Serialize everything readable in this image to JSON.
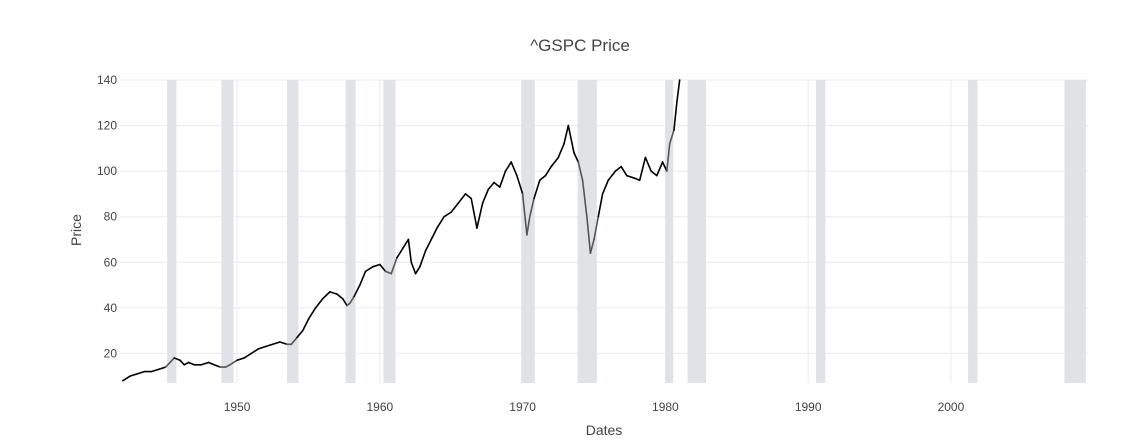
{
  "chart_data": {
    "type": "line",
    "title": "^GSPC Price",
    "xlabel": "Dates",
    "ylabel": "Price",
    "xlim": [
      1941.8,
      2009.6
    ],
    "ylim": [
      7,
      140
    ],
    "x_ticks": [
      1950,
      1960,
      1970,
      1980,
      1990,
      2000
    ],
    "y_ticks": [
      20,
      40,
      60,
      80,
      100,
      120,
      140
    ],
    "grid": true,
    "line_color": "#000000",
    "recession_color": "#dfe3e8",
    "recession_line_color": "#555555",
    "recession_periods": [
      [
        1945.1,
        1945.75
      ],
      [
        1948.9,
        1949.75
      ],
      [
        1953.5,
        1954.3
      ],
      [
        1957.6,
        1958.3
      ],
      [
        1960.25,
        1961.1
      ],
      [
        1969.9,
        1970.85
      ],
      [
        1973.85,
        1975.2
      ],
      [
        1980.0,
        1980.55
      ],
      [
        1981.55,
        1982.85
      ],
      [
        1990.55,
        1991.2
      ],
      [
        2001.2,
        2001.85
      ],
      [
        2007.95,
        2009.45
      ]
    ],
    "series": [
      {
        "x": [
          1942.0,
          1942.5,
          1943.0,
          1943.5,
          1944.0,
          1944.5,
          1945.0,
          1945.3,
          1945.6,
          1946.0,
          1946.3,
          1946.6,
          1947.0,
          1947.5,
          1948.0,
          1948.4,
          1948.8,
          1949.2,
          1949.5,
          1950.0,
          1950.5,
          1951.0,
          1951.5,
          1952.0,
          1952.5,
          1953.0,
          1953.5,
          1953.8,
          1954.2,
          1954.6,
          1955.0,
          1955.5,
          1956.0,
          1956.5,
          1957.0,
          1957.4,
          1957.7,
          1957.9,
          1958.2,
          1958.6,
          1959.0,
          1959.5,
          1960.0,
          1960.4,
          1960.8,
          1961.2,
          1961.6,
          1962.0,
          1962.2,
          1962.5,
          1962.8,
          1963.2,
          1963.6,
          1964.0,
          1964.5,
          1965.0,
          1965.5,
          1966.0,
          1966.4,
          1966.8,
          1967.2,
          1967.6,
          1968.0,
          1968.4,
          1968.8,
          1969.2,
          1969.6,
          1970.0,
          1970.3,
          1970.5,
          1970.8,
          1971.2,
          1971.6,
          1972.0,
          1972.5,
          1972.9,
          1973.2,
          1973.6,
          1973.9,
          1974.2,
          1974.5,
          1974.75,
          1975.0,
          1975.3,
          1975.6,
          1976.0,
          1976.5,
          1976.9,
          1977.3,
          1977.8,
          1978.2,
          1978.6,
          1979.0,
          1979.4,
          1979.8,
          1980.1,
          1980.3,
          1980.6,
          1980.8,
          1981.0
        ],
        "y": [
          8,
          10,
          11,
          12,
          12,
          13,
          14,
          16,
          18,
          17,
          15,
          16,
          15,
          15,
          16,
          15,
          14,
          14,
          15,
          17,
          18,
          20,
          22,
          23,
          24,
          25,
          24,
          24,
          27,
          30,
          35,
          40,
          44,
          47,
          46,
          44,
          41,
          42,
          45,
          50,
          56,
          58,
          59,
          56,
          55,
          62,
          66,
          70,
          60,
          55,
          58,
          65,
          70,
          75,
          80,
          82,
          86,
          90,
          88,
          75,
          86,
          92,
          95,
          93,
          100,
          104,
          98,
          90,
          72,
          80,
          88,
          96,
          98,
          102,
          106,
          112,
          120,
          108,
          104,
          96,
          80,
          64,
          70,
          80,
          90,
          96,
          100,
          102,
          98,
          97,
          96,
          106,
          100,
          98,
          104,
          100,
          112,
          118,
          130,
          140
        ]
      }
    ]
  }
}
